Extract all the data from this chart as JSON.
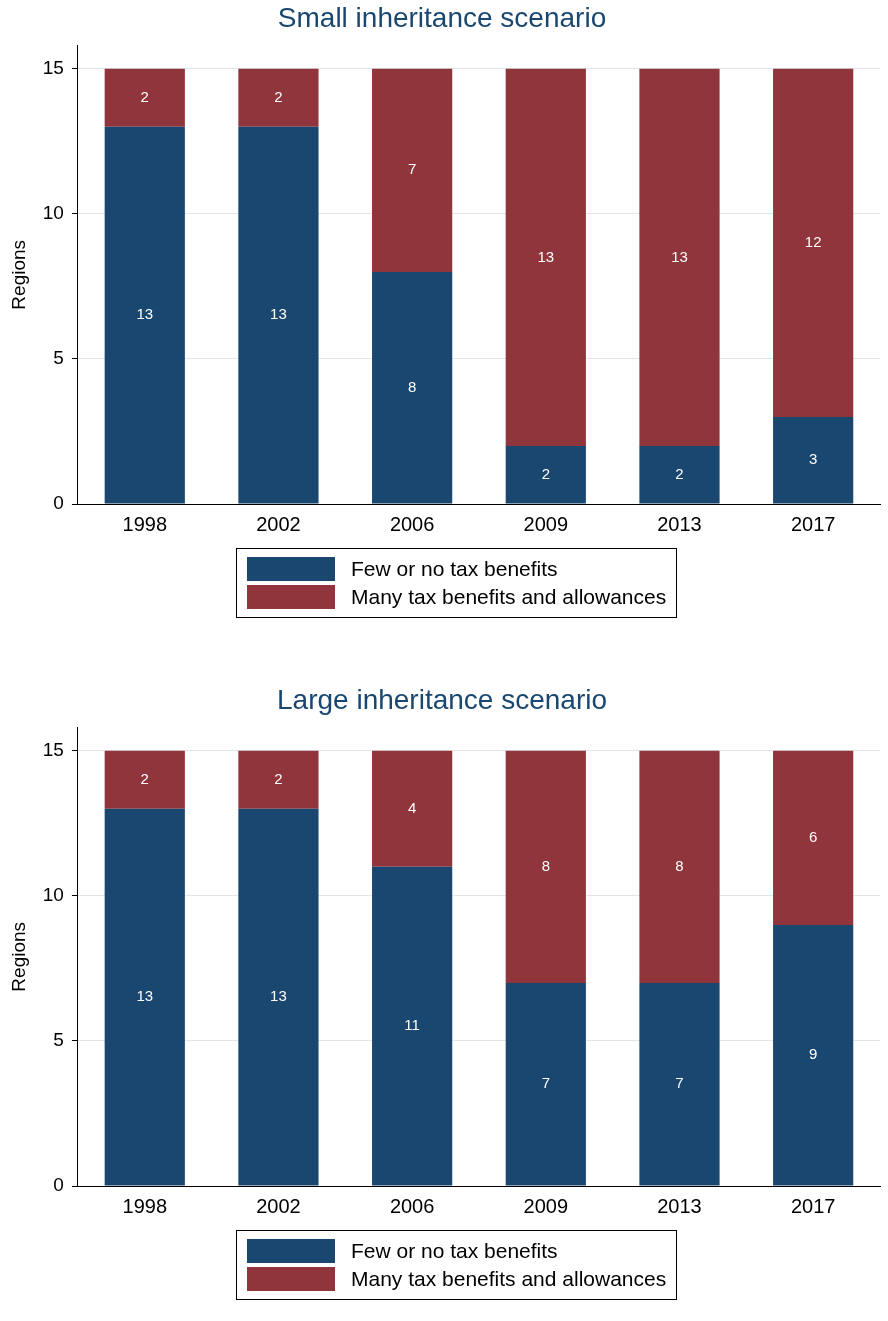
{
  "chart_data": [
    {
      "type": "bar",
      "title": "Small inheritance scenario",
      "ylabel": "Regions",
      "categories": [
        "1998",
        "2002",
        "2006",
        "2009",
        "2013",
        "2017"
      ],
      "stacked": true,
      "series": [
        {
          "name": "Few or no tax benefits",
          "color": "#1a476f",
          "values": [
            13,
            13,
            8,
            2,
            2,
            3
          ]
        },
        {
          "name": "Many tax benefits and allowances",
          "color": "#90353b",
          "values": [
            2,
            2,
            7,
            13,
            13,
            12
          ]
        }
      ],
      "ylim": [
        0,
        15.8
      ],
      "yticks": [
        0,
        5,
        10,
        15
      ],
      "grid": "y",
      "legend": "bottom",
      "data_labels": true
    },
    {
      "type": "bar",
      "title": "Large inheritance scenario",
      "ylabel": "Regions",
      "categories": [
        "1998",
        "2002",
        "2006",
        "2009",
        "2013",
        "2017"
      ],
      "stacked": true,
      "series": [
        {
          "name": "Few or no tax benefits",
          "color": "#1a476f",
          "values": [
            13,
            13,
            11,
            7,
            7,
            9
          ]
        },
        {
          "name": "Many tax benefits and allowances",
          "color": "#90353b",
          "values": [
            2,
            2,
            4,
            8,
            8,
            6
          ]
        }
      ],
      "ylim": [
        0,
        15.8
      ],
      "yticks": [
        0,
        5,
        10,
        15
      ],
      "grid": "y",
      "legend": "bottom",
      "data_labels": true
    }
  ]
}
